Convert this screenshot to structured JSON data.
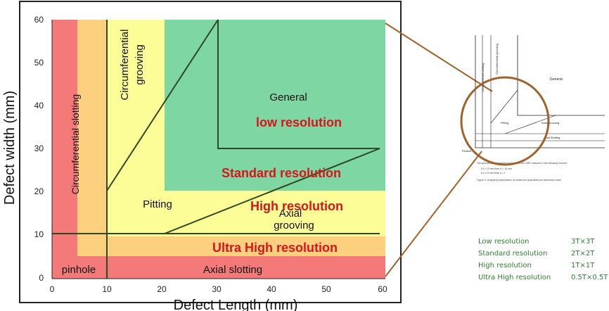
{
  "diagram": {
    "ylabel": "Defect width (mm)",
    "xlabel": "Defect Length (mm)",
    "x_ticks": [
      "0",
      "10",
      "20",
      "30",
      "40",
      "50",
      "60"
    ],
    "y_ticks": [
      "60",
      "50",
      "40",
      "30",
      "20",
      "10",
      "0"
    ],
    "regions": {
      "circumferential_slotting": "Circumferential slotting",
      "circumferential_grooving_1": "Circumferential",
      "circumferential_grooving_2": "grooving",
      "general": "General",
      "low_res": "low resolution",
      "standard_res": "Standard resolution",
      "pitting": "Pitting",
      "high_res": "High resolution",
      "axial_grooving_1": "Axial",
      "axial_grooving_2": "grooving",
      "ultra_high_res": "Ultra High resolution",
      "pinhole": "pinhole",
      "axial_slotting": "Axial slotting"
    },
    "colors": {
      "red": "#f47a7a",
      "orange": "#fdd07f",
      "yellow": "#fdfd98",
      "green": "#7ed6a3",
      "label_red": "#d9141b",
      "connector": "#a0622a"
    }
  },
  "inset": {
    "general": "General",
    "circ_slotting": "Circumferential slotting",
    "circ_grooving": "Circumferential grooving",
    "pitting": "Pitting",
    "axial_grooving": "Axial grooving",
    "axial_slotting": "Axial Slotting",
    "pinhole": "Pinhole",
    "caption1": "The geometrical parameter A is linked to the NDE methods in the following manner:",
    "caption2": "If t < 10 mm then A = 10 mm",
    "caption3": "If t ≥ 10 mm then A = t",
    "caption4": "Figure 2: Graphical presentation of metal loss anomalies per dimension class."
  },
  "legend": [
    {
      "name": "Low resolution",
      "value": "3T×3T"
    },
    {
      "name": "Standard resolution",
      "value": "2T×2T"
    },
    {
      "name": "High resolution",
      "value": "1T×1T"
    },
    {
      "name": "Ultra High resolution",
      "value": "0.5T×0.5T"
    }
  ]
}
